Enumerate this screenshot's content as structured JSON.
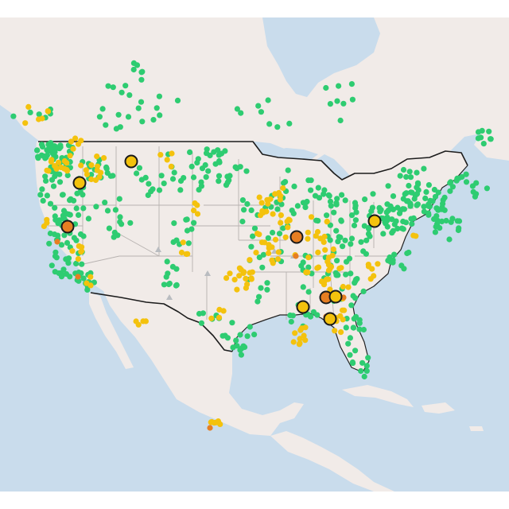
{
  "map": {
    "title": "",
    "colors": {
      "water": "#c9dcec",
      "land": "#f1ebe8",
      "green": "#2ecc71",
      "yellow": "#f4c20d",
      "orange": "#e67e22",
      "gray": "#b9bcc0",
      "outline": "#1a1a1a"
    },
    "status_legend": [
      "green",
      "yellow",
      "orange",
      "gray"
    ],
    "large_markers": [
      {
        "status": "yellow",
        "region": "montana"
      },
      {
        "status": "yellow",
        "region": "oregon"
      },
      {
        "status": "orange",
        "region": "northern-california"
      },
      {
        "status": "orange",
        "region": "missouri"
      },
      {
        "status": "yellow",
        "region": "ohio"
      },
      {
        "status": "yellow",
        "region": "mississippi"
      },
      {
        "status": "orange",
        "region": "alabama-west"
      },
      {
        "status": "yellow",
        "region": "alabama-east"
      },
      {
        "status": "yellow",
        "region": "florida-panhandle"
      }
    ]
  }
}
